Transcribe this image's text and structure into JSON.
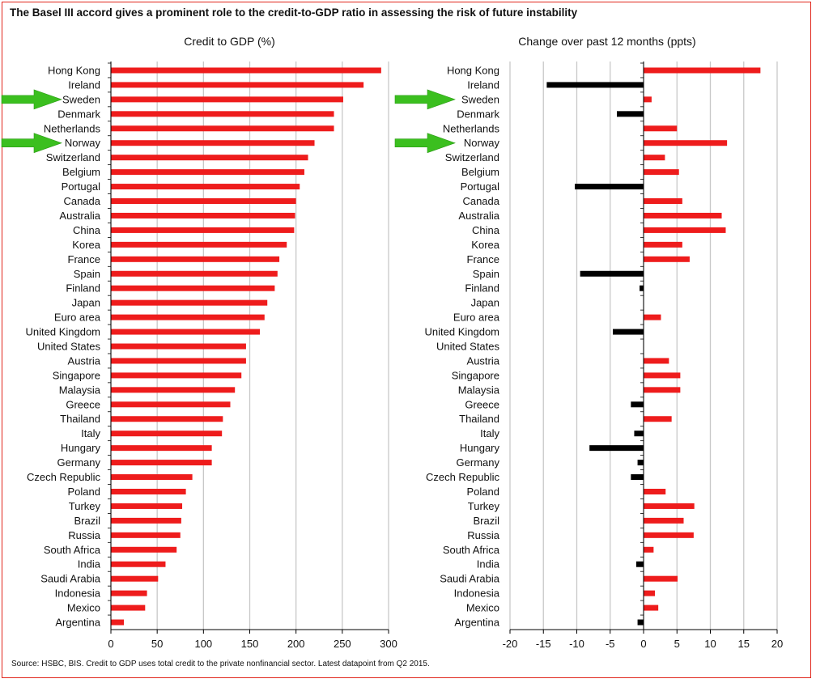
{
  "title": "The Basel III accord gives a prominent role to the credit-to-GDP ratio in assessing the risk of future instability",
  "source": "Source: HSBC, BIS. Credit to GDP uses total credit to the private nonfinancial sector. Latest datapoint from Q2 2015.",
  "colors": {
    "positive": "#ee1c1c",
    "negative": "#000000",
    "grid": "#c8c8c8",
    "arrow": "#3bbf1f",
    "border": "#e1261c"
  },
  "chart_data": [
    {
      "type": "bar",
      "orientation": "horizontal",
      "title": "Credit to GDP (%)",
      "categories": [
        "Hong Kong",
        "Ireland",
        "Sweden",
        "Denmark",
        "Netherlands",
        "Norway",
        "Switzerland",
        "Belgium",
        "Portugal",
        "Canada",
        "Australia",
        "China",
        "Korea",
        "France",
        "Spain",
        "Finland",
        "Japan",
        "Euro area",
        "United Kingdom",
        "United States",
        "Austria",
        "Singapore",
        "Malaysia",
        "Greece",
        "Thailand",
        "Italy",
        "Hungary",
        "Germany",
        "Czech Republic",
        "Poland",
        "Turkey",
        "Brazil",
        "Russia",
        "South Africa",
        "India",
        "Saudi Arabia",
        "Indonesia",
        "Mexico",
        "Argentina"
      ],
      "values": [
        292,
        273,
        251,
        241,
        241,
        220,
        213,
        209,
        204,
        200,
        199,
        198,
        190,
        182,
        180,
        177,
        169,
        166,
        161,
        146,
        146,
        141,
        134,
        129,
        121,
        120,
        109,
        109,
        88,
        81,
        77,
        76,
        75,
        71,
        59,
        51,
        39,
        37,
        14
      ],
      "xlim": [
        0,
        300
      ],
      "xticks": [
        "0",
        "50",
        "100",
        "150",
        "200",
        "250",
        "300"
      ],
      "grid": true,
      "highlighted": [
        "Sweden",
        "Norway"
      ]
    },
    {
      "type": "bar",
      "orientation": "horizontal",
      "title": "Change over past 12 months (ppts)",
      "categories": [
        "Hong Kong",
        "Ireland",
        "Sweden",
        "Denmark",
        "Netherlands",
        "Norway",
        "Switzerland",
        "Belgium",
        "Portugal",
        "Canada",
        "Australia",
        "China",
        "Korea",
        "France",
        "Spain",
        "Finland",
        "Japan",
        "Euro area",
        "United Kingdom",
        "United States",
        "Austria",
        "Singapore",
        "Malaysia",
        "Greece",
        "Thailand",
        "Italy",
        "Hungary",
        "Germany",
        "Czech Republic",
        "Poland",
        "Turkey",
        "Brazil",
        "Russia",
        "South Africa",
        "India",
        "Saudi Arabia",
        "Indonesia",
        "Mexico",
        "Argentina"
      ],
      "values": [
        17.5,
        -14.5,
        1.2,
        -4,
        5,
        12.5,
        3.2,
        5.3,
        -10.3,
        5.8,
        11.7,
        12.3,
        5.8,
        6.9,
        -9.5,
        -0.6,
        0,
        2.6,
        -4.6,
        0,
        3.8,
        5.5,
        5.5,
        -1.9,
        4.2,
        -1.4,
        -8.1,
        -0.9,
        -1.9,
        3.3,
        7.6,
        6,
        7.5,
        1.5,
        -1.1,
        5.1,
        1.7,
        2.2,
        -0.9
      ],
      "xlim": [
        -20,
        20
      ],
      "xticks": [
        "-20",
        "-15",
        "-10",
        "-5",
        "0",
        "5",
        "10",
        "15",
        "20"
      ],
      "grid": true,
      "highlighted": [
        "Sweden",
        "Norway"
      ]
    }
  ]
}
